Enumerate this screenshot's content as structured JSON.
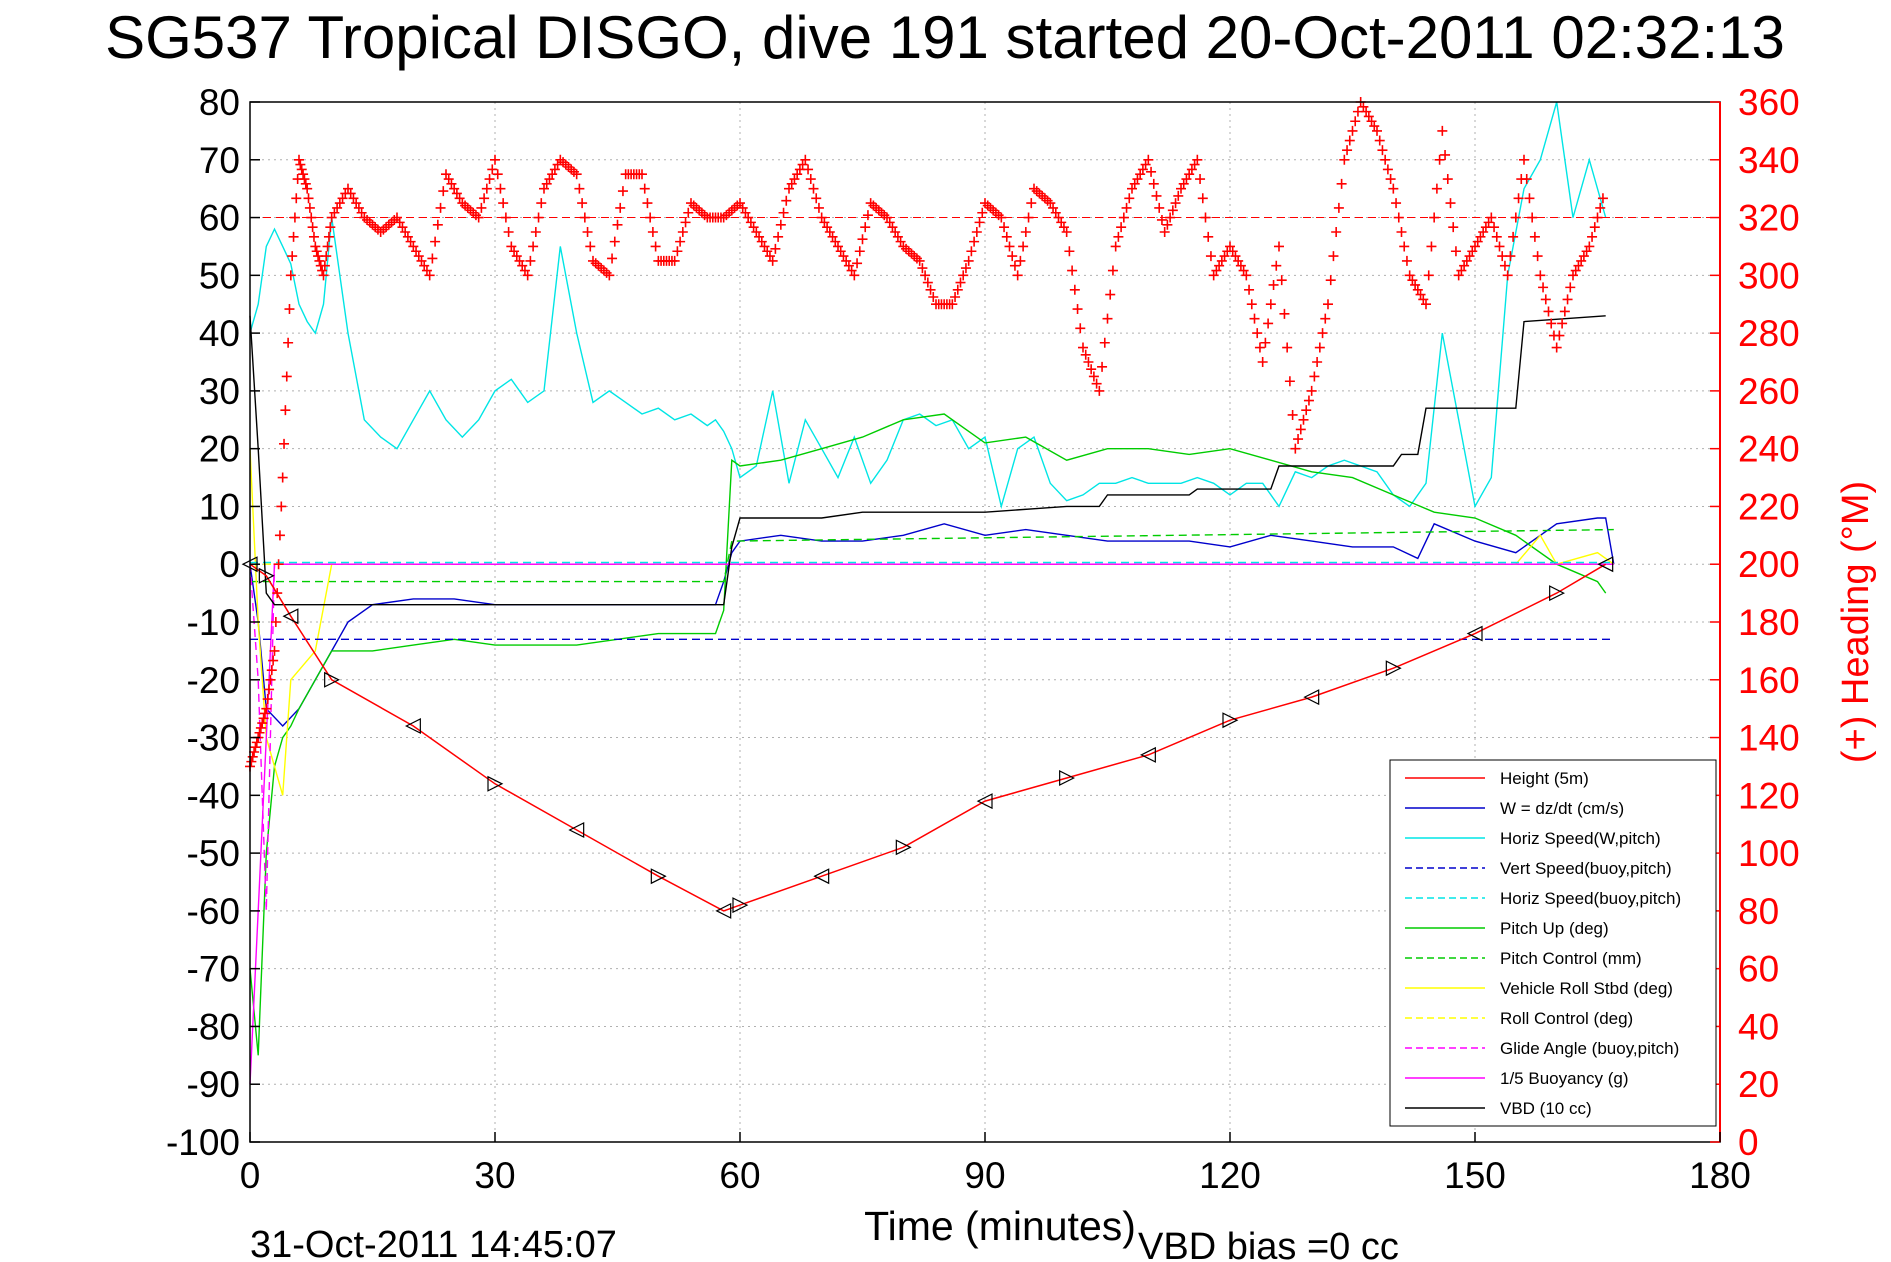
{
  "chart_data": {
    "type": "line",
    "title": "SG537 Tropical DISGO, dive 191 started 20-Oct-2011 02:32:13",
    "xlabel": "Time (minutes)",
    "ylabel_left": "",
    "ylabel_right": "(+) Heading (°M)",
    "xlim": [
      0,
      180
    ],
    "ylim_left": [
      -100,
      80
    ],
    "ylim_right": [
      0,
      360
    ],
    "x_ticks": [
      "0",
      "30",
      "60",
      "90",
      "120",
      "150",
      "180"
    ],
    "y_ticks_left": [
      "80",
      "70",
      "60",
      "50",
      "40",
      "30",
      "20",
      "10",
      "0",
      "-10",
      "-20",
      "-30",
      "-40",
      "-50",
      "-60",
      "-70",
      "-80",
      "-90",
      "-100"
    ],
    "y_ticks_right": [
      "360",
      "340",
      "320",
      "300",
      "280",
      "260",
      "240",
      "220",
      "200",
      "180",
      "160",
      "140",
      "120",
      "100",
      "80",
      "60",
      "40",
      "20",
      "0"
    ],
    "grid": true,
    "legend_position": "bottom-right",
    "footer_left": "31-Oct-2011 14:45:07",
    "footer_right": "VBD bias =0 cc",
    "colors": {
      "red": "#ff0000",
      "blue": "#0000cc",
      "cyan": "#00e5e5",
      "green": "#00cc00",
      "yellow": "#ffff00",
      "magenta": "#ff00ff",
      "black": "#000000"
    },
    "series": [
      {
        "name": "Height (5m)",
        "color": "#ff0000",
        "style": "solid",
        "x": [
          0,
          2,
          5,
          10,
          20,
          30,
          40,
          50,
          58,
          60,
          70,
          80,
          90,
          100,
          110,
          120,
          130,
          140,
          150,
          160,
          166
        ],
        "y": [
          0,
          -2,
          -9,
          -20,
          -28,
          -38,
          -46,
          -54,
          -60,
          -59,
          -54,
          -49,
          -41,
          -37,
          -33,
          -27,
          -23,
          -18,
          -12,
          -5,
          0
        ]
      },
      {
        "name": "W = dz/dt (cm/s)",
        "color": "#0000cc",
        "style": "solid",
        "x": [
          0,
          1,
          2,
          4,
          6,
          8,
          10,
          12,
          15,
          20,
          25,
          30,
          40,
          50,
          57,
          58,
          59,
          60,
          65,
          70,
          75,
          80,
          85,
          90,
          95,
          100,
          105,
          110,
          115,
          120,
          125,
          130,
          135,
          140,
          143,
          145,
          150,
          155,
          160,
          165,
          166,
          167
        ],
        "y": [
          0,
          -10,
          -25,
          -28,
          -25,
          -20,
          -15,
          -10,
          -7,
          -6,
          -6,
          -7,
          -7,
          -7,
          -7,
          -3,
          2,
          4,
          5,
          4,
          4,
          5,
          7,
          5,
          6,
          5,
          4,
          4,
          4,
          3,
          5,
          4,
          3,
          3,
          1,
          7,
          4,
          2,
          7,
          8,
          8,
          0
        ]
      },
      {
        "name": "Horiz Speed(W,pitch)",
        "color": "#00e5e5",
        "style": "solid",
        "x": [
          0,
          1,
          2,
          3,
          4,
          5,
          6,
          7,
          8,
          9,
          10,
          12,
          14,
          16,
          18,
          20,
          22,
          24,
          26,
          28,
          30,
          32,
          34,
          36,
          38,
          40,
          42,
          44,
          46,
          48,
          50,
          52,
          54,
          56,
          57,
          58,
          59,
          60,
          62,
          64,
          66,
          68,
          70,
          72,
          74,
          76,
          78,
          80,
          82,
          84,
          86,
          88,
          90,
          92,
          94,
          96,
          98,
          100,
          102,
          104,
          106,
          108,
          110,
          112,
          114,
          116,
          118,
          120,
          122,
          124,
          126,
          128,
          130,
          132,
          134,
          136,
          138,
          140,
          142,
          144,
          146,
          148,
          150,
          152,
          154,
          156,
          158,
          160,
          162,
          164,
          166
        ],
        "y": [
          40,
          45,
          55,
          58,
          55,
          52,
          45,
          42,
          40,
          45,
          60,
          40,
          25,
          22,
          20,
          25,
          30,
          25,
          22,
          25,
          30,
          32,
          28,
          30,
          55,
          40,
          28,
          30,
          28,
          26,
          27,
          25,
          26,
          24,
          25,
          23,
          20,
          15,
          17,
          30,
          14,
          25,
          20,
          15,
          22,
          14,
          18,
          25,
          26,
          24,
          25,
          20,
          22,
          10,
          20,
          22,
          14,
          11,
          12,
          14,
          14,
          15,
          14,
          14,
          14,
          15,
          14,
          12,
          14,
          14,
          10,
          16,
          15,
          17,
          18,
          17,
          16,
          12,
          10,
          14,
          40,
          25,
          10,
          15,
          50,
          65,
          70,
          80,
          60,
          70,
          60
        ]
      },
      {
        "name": "Vert Speed(buoy,pitch)",
        "color": "#0000cc",
        "style": "dashed",
        "x": [
          0,
          57,
          58,
          167
        ],
        "y": [
          -13,
          -13,
          -13,
          -13
        ]
      },
      {
        "name": "Horiz Speed(buoy,pitch)",
        "color": "#00e5e5",
        "style": "dashed",
        "x": [
          0,
          167
        ],
        "y": [
          0.3,
          0.3
        ]
      },
      {
        "name": "Pitch Up (deg)",
        "color": "#00cc00",
        "style": "solid",
        "x": [
          0,
          1,
          2,
          3,
          4,
          5,
          6,
          8,
          10,
          15,
          20,
          25,
          30,
          35,
          40,
          45,
          50,
          55,
          57,
          58,
          59,
          60,
          65,
          70,
          75,
          80,
          85,
          90,
          95,
          100,
          105,
          110,
          115,
          120,
          125,
          130,
          135,
          140,
          145,
          150,
          155,
          160,
          165,
          166
        ],
        "y": [
          -70,
          -85,
          -50,
          -35,
          -30,
          -28,
          -25,
          -20,
          -15,
          -15,
          -14,
          -13,
          -14,
          -14,
          -14,
          -13,
          -12,
          -12,
          -12,
          -8,
          18,
          17,
          18,
          20,
          22,
          25,
          26,
          21,
          22,
          18,
          20,
          20,
          19,
          20,
          18,
          16,
          15,
          12,
          9,
          8,
          5,
          0,
          -3,
          -5
        ]
      },
      {
        "name": "Pitch Control (mm)",
        "color": "#00cc00",
        "style": "dashed",
        "x": [
          0,
          58,
          59,
          167
        ],
        "y": [
          -3,
          -3,
          4,
          6
        ]
      },
      {
        "name": "Vehicle Roll Stbd (deg)",
        "color": "#ffff00",
        "style": "solid",
        "x": [
          0,
          1,
          2,
          3,
          4,
          5,
          8,
          10,
          20,
          30,
          40,
          50,
          58,
          60,
          80,
          100,
          120,
          140,
          150,
          155,
          158,
          160,
          165,
          167
        ],
        "y": [
          20,
          -10,
          -30,
          -35,
          -40,
          -20,
          -15,
          0,
          0,
          0,
          0,
          0,
          0,
          0,
          0,
          0,
          0,
          0,
          0,
          0,
          5,
          0,
          2,
          0
        ]
      },
      {
        "name": "Roll Control (deg)",
        "color": "#ffff00",
        "style": "dashed",
        "x": [
          0,
          167
        ],
        "y": [
          0,
          0
        ]
      },
      {
        "name": "Glide Angle (buoy,pitch)",
        "color": "#ff00ff",
        "style": "dashed",
        "x": [
          0,
          1,
          2,
          3,
          167
        ],
        "y": [
          0,
          -20,
          -60,
          0,
          0
        ]
      },
      {
        "name": "1/5 Buoyancy (g)",
        "color": "#ff00ff",
        "style": "solid",
        "x": [
          0,
          1,
          2,
          3,
          167
        ],
        "y": [
          -90,
          -60,
          -30,
          0,
          0
        ]
      },
      {
        "name": "VBD (10 cc)",
        "color": "#000000",
        "style": "solid",
        "x": [
          0,
          1,
          2,
          3,
          58,
          59,
          60,
          70,
          75,
          80,
          90,
          100,
          104,
          105,
          115,
          116,
          125,
          126,
          140,
          141,
          143,
          144,
          155,
          156,
          166
        ],
        "y": [
          43,
          20,
          -5,
          -7,
          -7,
          3,
          8,
          8,
          9,
          9,
          9,
          10,
          10,
          12,
          12,
          13,
          13,
          17,
          17,
          19,
          19,
          27,
          27,
          42,
          43
        ]
      },
      {
        "name": "Heading",
        "color": "#ff0000",
        "style": "plus",
        "axis": "right",
        "x": [
          0,
          1,
          2,
          3,
          4,
          5,
          6,
          7,
          8,
          9,
          10,
          12,
          14,
          16,
          18,
          20,
          22,
          24,
          26,
          28,
          30,
          32,
          34,
          36,
          38,
          40,
          42,
          44,
          46,
          48,
          50,
          52,
          54,
          56,
          58,
          60,
          62,
          64,
          66,
          68,
          70,
          72,
          74,
          76,
          78,
          80,
          82,
          84,
          86,
          88,
          90,
          92,
          94,
          96,
          98,
          100,
          102,
          104,
          106,
          108,
          110,
          112,
          114,
          116,
          118,
          120,
          122,
          124,
          126,
          128,
          130,
          132,
          134,
          136,
          138,
          140,
          142,
          144,
          146,
          148,
          150,
          152,
          154,
          156,
          158,
          160,
          162,
          164,
          166
        ],
        "y": [
          130,
          140,
          150,
          170,
          230,
          300,
          340,
          330,
          310,
          300,
          320,
          330,
          320,
          315,
          320,
          310,
          300,
          335,
          325,
          320,
          340,
          310,
          300,
          330,
          340,
          335,
          305,
          300,
          335,
          335,
          305,
          305,
          325,
          320,
          320,
          325,
          315,
          305,
          330,
          340,
          320,
          310,
          300,
          325,
          320,
          310,
          305,
          290,
          290,
          305,
          325,
          320,
          300,
          330,
          325,
          315,
          275,
          260,
          310,
          330,
          340,
          315,
          330,
          340,
          300,
          310,
          300,
          270,
          310,
          240,
          260,
          290,
          340,
          360,
          350,
          330,
          300,
          290,
          350,
          300,
          310,
          320,
          300,
          340,
          300,
          275,
          300,
          310,
          330
        ]
      }
    ]
  },
  "legend": {
    "items": [
      {
        "label": "Height (5m)",
        "color": "#ff0000",
        "dash": false
      },
      {
        "label": "W = dz/dt (cm/s)",
        "color": "#0000cc",
        "dash": false
      },
      {
        "label": "Horiz Speed(W,pitch)",
        "color": "#00e5e5",
        "dash": false
      },
      {
        "label": "Vert Speed(buoy,pitch)",
        "color": "#0000cc",
        "dash": true
      },
      {
        "label": "Horiz Speed(buoy,pitch)",
        "color": "#00e5e5",
        "dash": true
      },
      {
        "label": "Pitch Up (deg)",
        "color": "#00cc00",
        "dash": false
      },
      {
        "label": "Pitch Control (mm)",
        "color": "#00cc00",
        "dash": true
      },
      {
        "label": "Vehicle Roll Stbd (deg)",
        "color": "#ffff00",
        "dash": false
      },
      {
        "label": "Roll Control (deg)",
        "color": "#ffff00",
        "dash": true
      },
      {
        "label": "Glide Angle (buoy,pitch)",
        "color": "#ff00ff",
        "dash": true
      },
      {
        "label": "1/5 Buoyancy (g)",
        "color": "#ff00ff",
        "dash": false
      },
      {
        "label": "VBD (10 cc)",
        "color": "#000000",
        "dash": false
      }
    ]
  }
}
